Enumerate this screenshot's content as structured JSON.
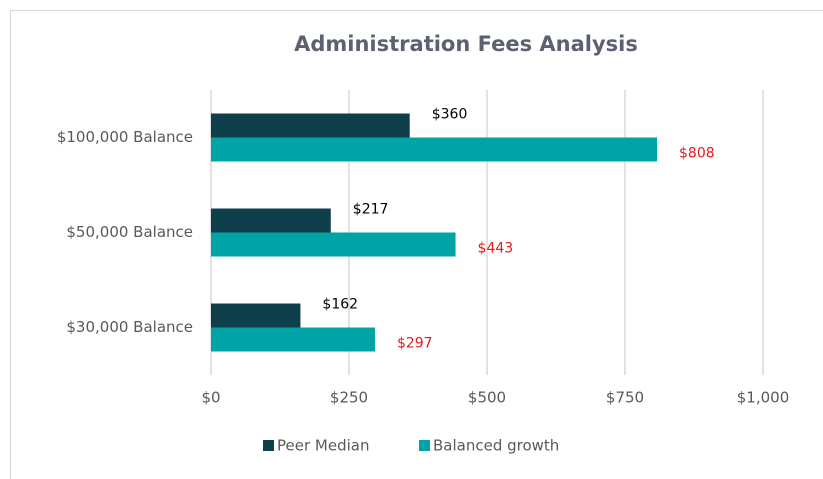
{
  "chart_data": {
    "type": "hbar",
    "title": "Administration Fees Analysis",
    "categories": [
      "$100,000 Balance",
      "$50,000 Balance",
      "$30,000 Balance"
    ],
    "series": [
      {
        "name": "Peer Median",
        "color": "#0f3f4b",
        "values": [
          360,
          217,
          162
        ],
        "value_labels": [
          "$360",
          "$217",
          "$162"
        ],
        "label_color": "#000000"
      },
      {
        "name": "Balanced growth",
        "color": "#00a3a6",
        "values": [
          808,
          443,
          297
        ],
        "value_labels": [
          "$808",
          "$443",
          "$297"
        ],
        "label_color": "#e31a1c"
      }
    ],
    "xlim": [
      0,
      1000
    ],
    "xticks": [
      {
        "value": 0,
        "label": "$0"
      },
      {
        "value": 250,
        "label": "$250"
      },
      {
        "value": 500,
        "label": "$500"
      },
      {
        "value": 750,
        "label": "$750"
      },
      {
        "value": 1000,
        "label": "$1,000"
      }
    ],
    "grid": true,
    "legend": "bottom"
  }
}
